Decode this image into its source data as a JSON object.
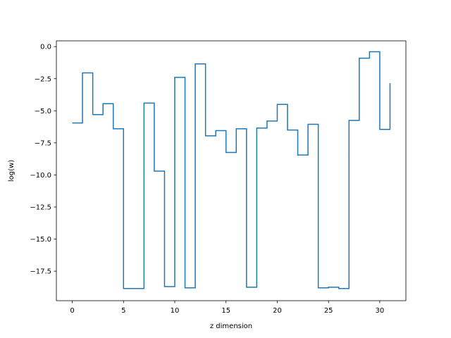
{
  "chart_data": {
    "type": "line",
    "style": "step-post",
    "title": "",
    "xlabel": "z dimension",
    "ylabel": "log(w)",
    "xlim": [
      -1.55,
      32.55
    ],
    "ylim": [
      -19.8,
      0.45
    ],
    "x_ticks": [
      0,
      5,
      10,
      15,
      20,
      25,
      30
    ],
    "x_tick_labels": [
      "0",
      "5",
      "10",
      "15",
      "20",
      "25",
      "30"
    ],
    "y_ticks": [
      0.0,
      -2.5,
      -5.0,
      -7.5,
      -10.0,
      -12.5,
      -15.0,
      -17.5
    ],
    "y_tick_labels": [
      "0.0",
      "−2.5",
      "−5.0",
      "−7.5",
      "−10.0",
      "−12.5",
      "−15.0",
      "−17.5"
    ],
    "grid": false,
    "series": [
      {
        "color": "#1f77b4",
        "x": [
          0,
          1,
          2,
          3,
          4,
          5,
          6,
          7,
          8,
          9,
          10,
          11,
          12,
          13,
          14,
          15,
          16,
          17,
          18,
          19,
          20,
          21,
          22,
          23,
          24,
          25,
          26,
          27,
          28,
          29,
          30,
          31
        ],
        "values": [
          -5.95,
          -2.05,
          -5.3,
          -4.45,
          -6.4,
          -18.85,
          -18.85,
          -4.4,
          -9.7,
          -18.7,
          -2.4,
          -18.8,
          -1.35,
          -6.95,
          -6.55,
          -8.25,
          -6.4,
          -18.75,
          -6.35,
          -5.8,
          -4.5,
          -6.5,
          -8.45,
          -6.05,
          -18.8,
          -18.75,
          -18.85,
          -5.75,
          -0.9,
          -0.4,
          -6.45,
          -2.85
        ]
      }
    ]
  }
}
